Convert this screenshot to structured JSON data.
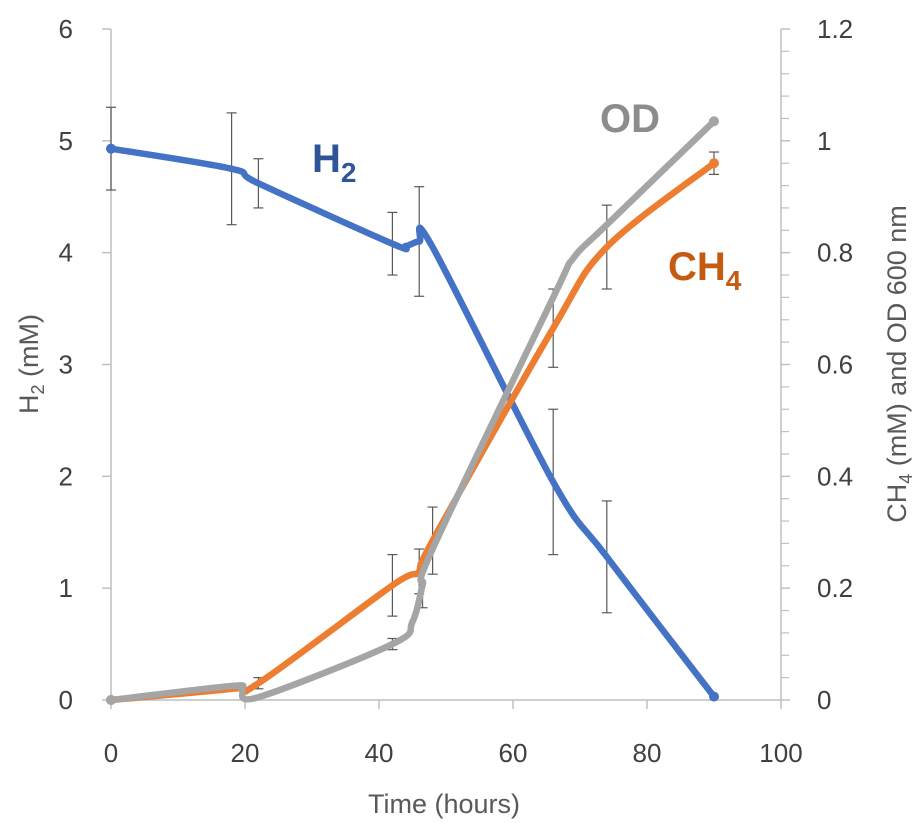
{
  "chart_data": {
    "type": "line",
    "xlabel": "Time (hours)",
    "ylabel_left": {
      "main": "H",
      "sub": "2",
      "rest": " (mM)"
    },
    "ylabel_right": {
      "main": "CH",
      "sub": "4",
      "rest": " (mM) and OD 600 nm"
    },
    "xlim": [
      0,
      100
    ],
    "ylim_left": [
      0,
      6
    ],
    "ylim_right": [
      0,
      1.2
    ],
    "x_ticks": [
      "0",
      "20",
      "40",
      "60",
      "80",
      "100"
    ],
    "y_left_ticks": [
      "0",
      "1",
      "2",
      "3",
      "4",
      "5",
      "6"
    ],
    "y_right_ticks": [
      "0",
      "0.2",
      "0.4",
      "0.6",
      "0.8",
      "1",
      "1.2"
    ],
    "grid": false,
    "series": [
      {
        "name": "H2",
        "label_main": "H",
        "label_sub": "2",
        "axis": "left",
        "color": "#4472C4",
        "label_color": "#2F5597",
        "x": [
          0,
          18,
          22,
          42,
          44,
          46,
          48,
          66,
          74,
          90
        ],
        "y": [
          4.93,
          4.75,
          4.62,
          4.08,
          4.06,
          4.1,
          4.05,
          1.95,
          1.28,
          0.03
        ],
        "err": [
          0.37,
          0.5,
          0.22,
          0.28,
          0,
          0.49,
          0,
          0.65,
          0.5,
          0
        ]
      },
      {
        "name": "CH4",
        "label_main": "CH",
        "label_sub": "4",
        "axis": "right",
        "color": "#ED7D31",
        "label_color": "#C55A11",
        "x": [
          0,
          18,
          22,
          42,
          46,
          48,
          66,
          74,
          90
        ],
        "y": [
          0,
          0.02,
          0.03,
          0.205,
          0.23,
          0.285,
          0.665,
          0.81,
          0.96
        ],
        "err": [
          0,
          0,
          0.01,
          0.055,
          0.04,
          0.06,
          0.07,
          0.075,
          0.02
        ]
      },
      {
        "name": "OD",
        "label_main": "OD",
        "label_sub": "",
        "axis": "right",
        "color": "#A5A5A5",
        "label_color": "#8C8C8C",
        "x": [
          0,
          18,
          19.5,
          22,
          42,
          45,
          46.5,
          48,
          66,
          69,
          74,
          90
        ],
        "y": [
          0,
          0.025,
          0.02,
          0.005,
          0.1,
          0.14,
          0.205,
          0.27,
          0.72,
          0.79,
          0.85,
          1.035
        ],
        "err": [
          0,
          0,
          0,
          0,
          0.01,
          0,
          0.04,
          0,
          0,
          0,
          0,
          0
        ]
      }
    ]
  }
}
